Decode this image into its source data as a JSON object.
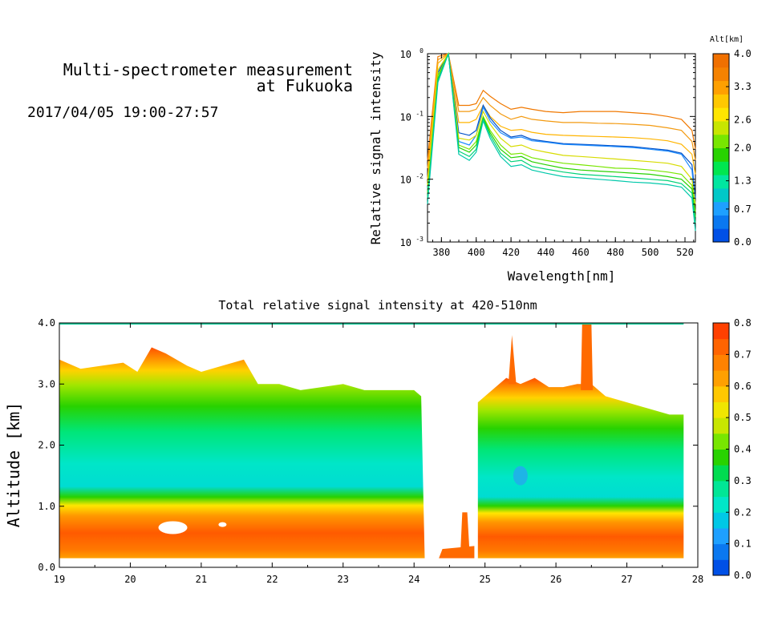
{
  "header": {
    "title_line1": "Multi-spectrometer measurement",
    "title_line2": "at Fukuoka",
    "datetime": "2017/04/05 19:00-27:57"
  },
  "chart_data": [
    {
      "type": "line",
      "xlabel": "Wavelength[nm]",
      "ylabel": "Relative signal intensity",
      "xlim": [
        372,
        526
      ],
      "ylim": [
        0.001,
        1
      ],
      "y_scale": "log",
      "x_ticks": [
        "380",
        "400",
        "420",
        "440",
        "460",
        "480",
        "500",
        "520"
      ],
      "y_ticks": [
        "10^0",
        "10^-1",
        "10^-2",
        "10^-3"
      ],
      "x": [
        372,
        378,
        384,
        390,
        396,
        400,
        404,
        408,
        414,
        420,
        426,
        432,
        440,
        450,
        460,
        470,
        480,
        490,
        500,
        510,
        518,
        524,
        526
      ],
      "series": [
        {
          "alt": 4.0,
          "color": "#f07800",
          "values": [
            0.02,
            0.9,
            1.0,
            0.15,
            0.15,
            0.16,
            0.26,
            0.21,
            0.16,
            0.13,
            0.14,
            0.13,
            0.12,
            0.115,
            0.12,
            0.12,
            0.12,
            0.115,
            0.11,
            0.1,
            0.09,
            0.06,
            0.03
          ]
        },
        {
          "alt": 3.6,
          "color": "#f39a10",
          "values": [
            0.015,
            0.8,
            1.0,
            0.12,
            0.12,
            0.13,
            0.2,
            0.15,
            0.11,
            0.09,
            0.1,
            0.09,
            0.085,
            0.08,
            0.08,
            0.078,
            0.077,
            0.075,
            0.072,
            0.066,
            0.06,
            0.04,
            0.02
          ]
        },
        {
          "alt": 3.2,
          "color": "#ffb400",
          "values": [
            0.01,
            0.7,
            1.0,
            0.08,
            0.08,
            0.09,
            0.15,
            0.1,
            0.07,
            0.06,
            0.062,
            0.056,
            0.052,
            0.05,
            0.049,
            0.048,
            0.047,
            0.046,
            0.044,
            0.041,
            0.036,
            0.025,
            0.012
          ]
        },
        {
          "alt": 1.0,
          "color": "#0050c8",
          "values": [
            0.006,
            0.5,
            1.0,
            0.055,
            0.05,
            0.06,
            0.15,
            0.095,
            0.06,
            0.047,
            0.05,
            0.043,
            0.04,
            0.037,
            0.036,
            0.035,
            0.034,
            0.033,
            0.031,
            0.029,
            0.026,
            0.017,
            0.005
          ]
        },
        {
          "alt": 0.7,
          "color": "#1e8cff",
          "values": [
            0.007,
            0.45,
            1.0,
            0.04,
            0.035,
            0.05,
            0.14,
            0.085,
            0.055,
            0.045,
            0.047,
            0.041,
            0.039,
            0.036,
            0.035,
            0.034,
            0.033,
            0.032,
            0.03,
            0.028,
            0.025,
            0.014,
            0.004
          ]
        },
        {
          "alt": 2.8,
          "color": "#d7dc00",
          "values": [
            0.008,
            0.55,
            1.0,
            0.045,
            0.042,
            0.05,
            0.12,
            0.075,
            0.045,
            0.033,
            0.035,
            0.03,
            0.027,
            0.024,
            0.023,
            0.022,
            0.021,
            0.02,
            0.019,
            0.018,
            0.016,
            0.01,
            0.004
          ]
        },
        {
          "alt": 2.4,
          "color": "#78e600",
          "values": [
            0.006,
            0.45,
            1.0,
            0.035,
            0.03,
            0.04,
            0.1,
            0.06,
            0.035,
            0.025,
            0.026,
            0.022,
            0.02,
            0.018,
            0.017,
            0.016,
            0.015,
            0.0148,
            0.014,
            0.013,
            0.012,
            0.008,
            0.003
          ]
        },
        {
          "alt": 2.0,
          "color": "#28d200",
          "values": [
            0.005,
            0.4,
            1.0,
            0.032,
            0.027,
            0.035,
            0.095,
            0.055,
            0.03,
            0.022,
            0.023,
            0.019,
            0.017,
            0.015,
            0.014,
            0.0135,
            0.013,
            0.0125,
            0.012,
            0.011,
            0.01,
            0.007,
            0.0025
          ]
        },
        {
          "alt": 1.6,
          "color": "#00d278",
          "values": [
            0.005,
            0.38,
            1.0,
            0.028,
            0.023,
            0.03,
            0.09,
            0.05,
            0.026,
            0.019,
            0.02,
            0.016,
            0.0145,
            0.013,
            0.012,
            0.0115,
            0.011,
            0.0105,
            0.01,
            0.0095,
            0.0085,
            0.006,
            0.002
          ]
        },
        {
          "alt": 1.3,
          "color": "#00c8aa",
          "values": [
            0.004,
            0.35,
            1.0,
            0.025,
            0.02,
            0.027,
            0.085,
            0.045,
            0.023,
            0.016,
            0.017,
            0.014,
            0.0125,
            0.011,
            0.0105,
            0.01,
            0.0095,
            0.009,
            0.0087,
            0.0082,
            0.0075,
            0.005,
            0.0015
          ]
        }
      ]
    },
    {
      "type": "heatmap",
      "title": "Total relative signal intensity at 420-510nm",
      "ylabel": "Altitude [km]",
      "xlim": [
        19,
        28
      ],
      "ylim": [
        0,
        4
      ],
      "x_ticks": [
        "19",
        "20",
        "21",
        "22",
        "23",
        "24",
        "25",
        "26",
        "27",
        "28"
      ],
      "y_ticks": [
        "0.0",
        "1.0",
        "2.0",
        "3.0",
        "4.0"
      ],
      "colorbar": {
        "min": 0,
        "max": 0.8,
        "ticks": [
          "0.0",
          "0.1",
          "0.2",
          "0.3",
          "0.4",
          "0.5",
          "0.6",
          "0.7",
          "0.8"
        ]
      },
      "cloud_base_profile": {
        "x": [
          19.0,
          19.3,
          19.6,
          19.9,
          20.1,
          20.3,
          20.5,
          20.8,
          21.0,
          21.3,
          21.6,
          21.8,
          22.1,
          22.4,
          22.7,
          23.0,
          23.3,
          23.6,
          24.0,
          24.1
        ],
        "top_km": [
          3.4,
          3.25,
          3.3,
          3.35,
          3.2,
          3.6,
          3.5,
          3.3,
          3.2,
          3.3,
          3.4,
          3.0,
          3.0,
          2.9,
          2.95,
          3.0,
          2.9,
          2.9,
          2.9,
          2.8
        ]
      },
      "cloud_profile_2": {
        "x": [
          24.9,
          25.1,
          25.3,
          25.5,
          25.7,
          25.9,
          26.1,
          26.3,
          26.5,
          26.7,
          27.0,
          27.3,
          27.6,
          27.8
        ],
        "top_km": [
          2.7,
          2.9,
          3.1,
          3.0,
          3.1,
          2.95,
          2.95,
          3.0,
          3.0,
          2.8,
          2.7,
          2.6,
          2.5,
          2.5
        ]
      },
      "regions": [
        {
          "x_start": 19.0,
          "x_end": 24.15,
          "base_km": 0.15
        },
        {
          "x_start": 24.85,
          "x_end": 27.8,
          "base_km": 0.15
        }
      ]
    }
  ],
  "colorbar_top": {
    "label": "Alt[km]",
    "ticks": [
      "0.0",
      "0.7",
      "1.3",
      "2.0",
      "2.6",
      "3.3",
      "4.0"
    ],
    "colors": [
      "#0050e6",
      "#0a78f0",
      "#1ea0ff",
      "#00c8c8",
      "#00e6a0",
      "#00e650",
      "#28d200",
      "#78e600",
      "#c8e600",
      "#ffe600",
      "#ffc800",
      "#ffa000",
      "#f58200",
      "#f07000"
    ]
  },
  "colorbar_bottom": {
    "colors": [
      "#0050e6",
      "#0a78f0",
      "#1ea0ff",
      "#00c8e6",
      "#00e6c8",
      "#00e696",
      "#00dc50",
      "#28d200",
      "#78e600",
      "#c8e600",
      "#f0e600",
      "#ffc800",
      "#ffa000",
      "#ff8200",
      "#ff6400",
      "#ff4000"
    ]
  }
}
